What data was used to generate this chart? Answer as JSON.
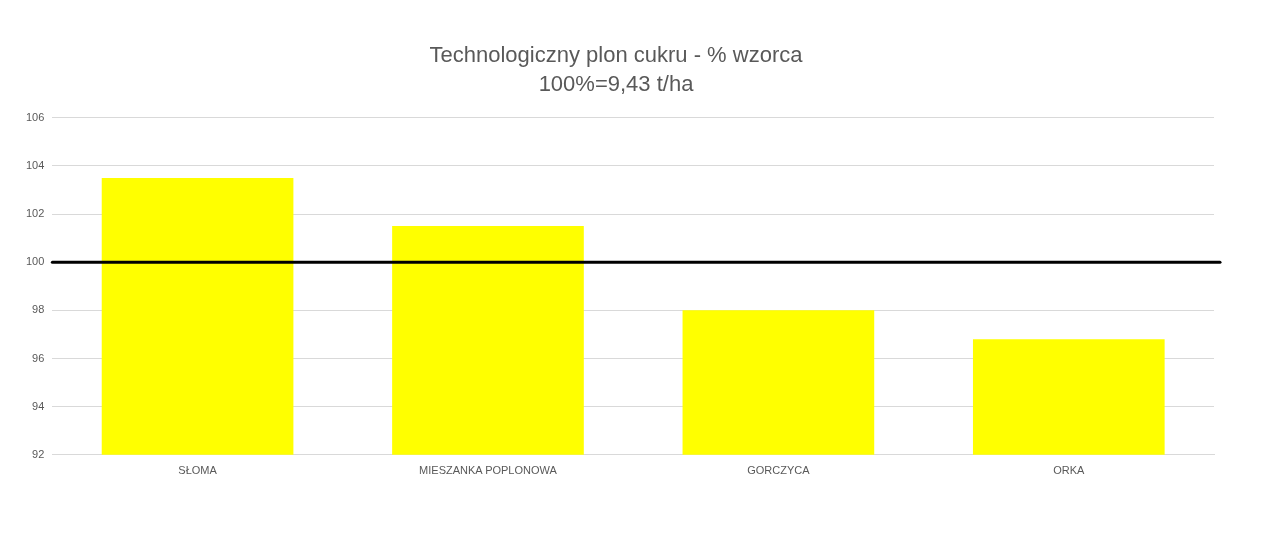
{
  "chart_data": {
    "type": "bar",
    "title": "Technologiczny plon cukru - % wzorca",
    "subtitle": "100%=9,43 t/ha",
    "categories": [
      "SŁOMA",
      "MIESZANKA POPLONOWA",
      "GORCZYCA",
      "ORKA"
    ],
    "values": [
      103.5,
      101.5,
      98.0,
      96.8
    ],
    "color": "#ffff00",
    "ylim": [
      92,
      106
    ],
    "yticks": [
      92,
      94,
      96,
      98,
      100,
      102,
      104,
      106
    ],
    "grid": "y",
    "legend": false,
    "ref_lines": [
      {
        "axis": "y",
        "value": 100,
        "color": "#000000"
      }
    ]
  }
}
